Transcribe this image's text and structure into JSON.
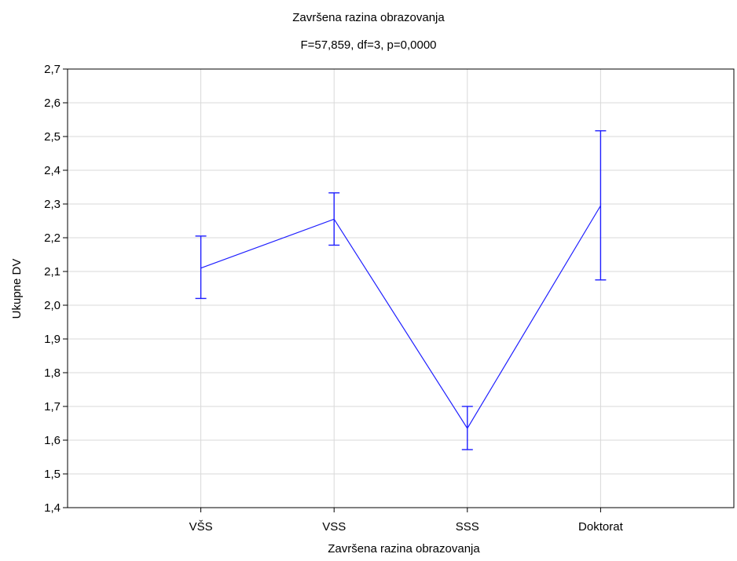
{
  "chart_data": {
    "type": "line",
    "title": "Završena razina obrazovanja",
    "subtitle": "F=57,859, df=3, p=0,0000",
    "xlabel": "Završena razina obrazovanja",
    "ylabel": "Ukupne DV",
    "categories": [
      "VŠS",
      "VSS",
      "SSS",
      "Doktorat"
    ],
    "series": [
      {
        "values": [
          2.11,
          2.255,
          1.635,
          2.295
        ],
        "lower": [
          2.02,
          2.178,
          1.572,
          2.075
        ],
        "upper": [
          2.205,
          2.333,
          1.7,
          2.517
        ]
      }
    ],
    "ylim": [
      1.4,
      2.7
    ],
    "yticks": [
      "1,4",
      "1,5",
      "1,6",
      "1,7",
      "1,8",
      "1,9",
      "2,0",
      "2,1",
      "2,2",
      "2,3",
      "2,4",
      "2,5",
      "2,6",
      "2,7"
    ],
    "grid": true,
    "error_bars": true,
    "colors": {
      "series": "#1f1fff",
      "grid": "#d9d9d9",
      "axis": "#000000"
    }
  }
}
